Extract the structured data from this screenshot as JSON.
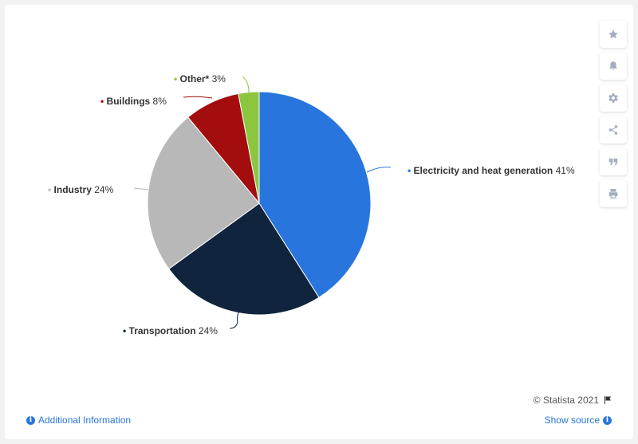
{
  "chart_data": {
    "type": "pie",
    "slices": [
      {
        "label": "Electricity and heat generation",
        "value": 41,
        "value_label": "41%",
        "color": "#2876dd"
      },
      {
        "label": "Transportation",
        "value": 24,
        "value_label": "24%",
        "color": "#10243d"
      },
      {
        "label": "Industry",
        "value": 24,
        "value_label": "24%",
        "color": "#b8b8b8"
      },
      {
        "label": "Buildings",
        "value": 8,
        "value_label": "8%",
        "color": "#a30d0d"
      },
      {
        "label": "Other*",
        "value": 3,
        "value_label": "3%",
        "color": "#8cc63f"
      }
    ],
    "start_angle_deg": 0,
    "direction": "clockwise"
  },
  "toolbar": {
    "icons": [
      "star-icon",
      "bell-icon",
      "gear-icon",
      "share-icon",
      "quote-icon",
      "print-icon"
    ]
  },
  "footer": {
    "copyright": "© Statista 2021",
    "additional_info": "Additional Information",
    "show_source": "Show source"
  }
}
